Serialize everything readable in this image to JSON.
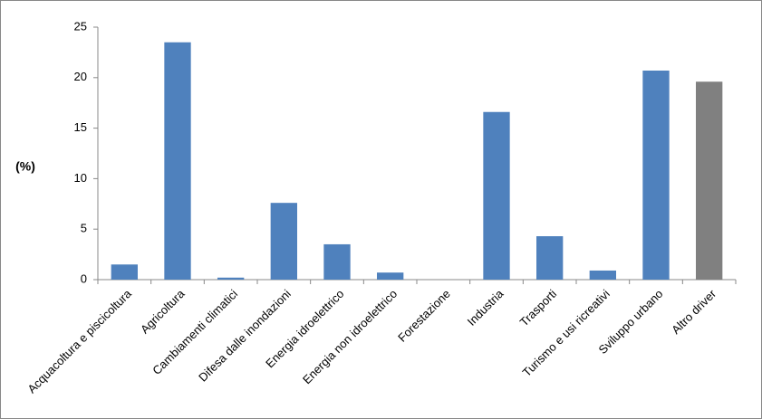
{
  "chart_data": {
    "type": "bar",
    "ylabel": "(%)",
    "categories": [
      "Acquacoltura e piscicoltura",
      "Agricoltura",
      "Cambiamenti climatici",
      "Difesa dalle inondazioni",
      "Energia idroelettrico",
      "Energia non idroelettrico",
      "Forestazione",
      "Industria",
      "Trasporti",
      "Turismo e usi ricreativi",
      "Sviluppo urbano",
      "Altro driver"
    ],
    "values": [
      1.5,
      23.5,
      0.2,
      7.6,
      3.5,
      0.7,
      0,
      16.6,
      4.3,
      0.9,
      20.7,
      19.6
    ],
    "colors": [
      "#4f81bd",
      "#4f81bd",
      "#4f81bd",
      "#4f81bd",
      "#4f81bd",
      "#4f81bd",
      "#4f81bd",
      "#4f81bd",
      "#4f81bd",
      "#4f81bd",
      "#4f81bd",
      "#808080"
    ],
    "ylim": [
      0,
      25
    ],
    "yticks": [
      0,
      5,
      10,
      15,
      20,
      25
    ],
    "grid": false
  }
}
